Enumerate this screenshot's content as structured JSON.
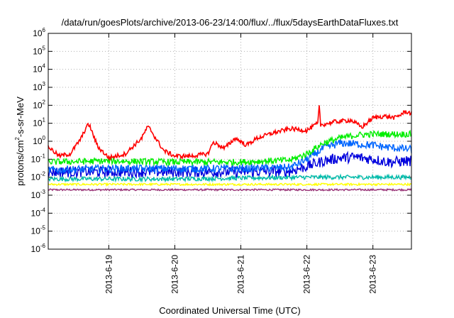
{
  "chart_data": {
    "type": "line",
    "title": "/data/run/goesPlots/archive/2013-06-23/14:00/flux/../flux/5daysEarthDataFluxes.txt",
    "xlabel": "Coordinated Universal Time (UTC)",
    "ylabel": {
      "base": "protons/cm",
      "exp": "2",
      "rest": "-s-sr-MeV"
    },
    "yscale": "log",
    "ylim": [
      1e-06,
      1000000.0
    ],
    "xlim": [
      "2013-06-18T02:00",
      "2013-06-23T14:00"
    ],
    "grid": true,
    "legend": "none",
    "x_ticks": [
      "2013-6-19",
      "2013-6-20",
      "2013-6-21",
      "2013-6-22",
      "2013-6-23"
    ],
    "y_ticks": [
      {
        "base": "10",
        "exp": "-6"
      },
      {
        "base": "10",
        "exp": "-5"
      },
      {
        "base": "10",
        "exp": "-4"
      },
      {
        "base": "10",
        "exp": "-3"
      },
      {
        "base": "10",
        "exp": "-2"
      },
      {
        "base": "10",
        "exp": "-1"
      },
      {
        "base": "10",
        "exp": "0"
      },
      {
        "base": "10",
        "exp": "1"
      },
      {
        "base": "10",
        "exp": "2"
      },
      {
        "base": "10",
        "exp": "3"
      },
      {
        "base": "10",
        "exp": "4"
      },
      {
        "base": "10",
        "exp": "5"
      },
      {
        "base": "10",
        "exp": "6"
      }
    ],
    "series": [
      {
        "color": "#ff0000",
        "x": [
          "2013-06-18T02:00",
          "2013-06-18T06:00",
          "2013-06-18T10:00",
          "2013-06-18T14:00",
          "2013-06-18T16:00",
          "2013-06-18T17:00",
          "2013-06-18T18:00",
          "2013-06-18T20:00",
          "2013-06-19T00:00",
          "2013-06-19T06:00",
          "2013-06-19T12:00",
          "2013-06-19T14:00",
          "2013-06-19T15:00",
          "2013-06-19T17:00",
          "2013-06-19T20:00",
          "2013-06-20T00:00",
          "2013-06-20T06:00",
          "2013-06-20T12:00",
          "2013-06-20T14:00",
          "2013-06-20T18:00",
          "2013-06-20T22:00",
          "2013-06-21T02:00",
          "2013-06-21T06:00",
          "2013-06-21T12:00",
          "2013-06-21T18:00",
          "2013-06-22T00:00",
          "2013-06-22T04:00",
          "2013-06-22T04:30",
          "2013-06-22T05:00",
          "2013-06-22T10:00",
          "2013-06-22T16:00",
          "2013-06-22T20:00",
          "2013-06-23T00:00",
          "2013-06-23T04:00",
          "2013-06-23T08:00",
          "2013-06-23T12:00",
          "2013-06-23T14:00"
        ],
        "y": [
          0.5,
          0.15,
          0.2,
          1.5,
          7,
          8,
          3,
          0.5,
          0.12,
          0.2,
          1.5,
          6,
          5,
          1.5,
          0.3,
          0.15,
          0.15,
          0.2,
          0.9,
          0.4,
          1.5,
          0.6,
          1.5,
          3,
          5,
          4,
          10,
          90,
          8,
          12,
          15,
          6,
          20,
          25,
          20,
          45,
          35
        ]
      },
      {
        "color": "#00ee00",
        "x": [
          "2013-06-18T02:00",
          "2013-06-19T00:00",
          "2013-06-20T00:00",
          "2013-06-21T00:00",
          "2013-06-21T18:00",
          "2013-06-22T00:00",
          "2013-06-22T06:00",
          "2013-06-22T12:00",
          "2013-06-22T18:00",
          "2013-06-23T00:00",
          "2013-06-23T06:00",
          "2013-06-23T14:00"
        ],
        "y": [
          0.07,
          0.08,
          0.07,
          0.07,
          0.09,
          0.2,
          0.8,
          1.5,
          2.2,
          2.5,
          2.5,
          2.5
        ]
      },
      {
        "color": "#0066ff",
        "x": [
          "2013-06-18T02:00",
          "2013-06-19T00:00",
          "2013-06-20T00:00",
          "2013-06-21T00:00",
          "2013-06-21T18:00",
          "2013-06-22T00:00",
          "2013-06-22T06:00",
          "2013-06-22T12:00",
          "2013-06-22T18:00",
          "2013-06-23T00:00",
          "2013-06-23T06:00",
          "2013-06-23T14:00"
        ],
        "y": [
          0.025,
          0.03,
          0.03,
          0.03,
          0.035,
          0.1,
          0.4,
          0.8,
          0.7,
          0.6,
          0.45,
          0.35
        ]
      },
      {
        "color": "#0000dd",
        "x": [
          "2013-06-18T02:00",
          "2013-06-19T00:00",
          "2013-06-20T00:00",
          "2013-06-21T00:00",
          "2013-06-21T18:00",
          "2013-06-22T00:00",
          "2013-06-22T06:00",
          "2013-06-22T12:00",
          "2013-06-22T18:00",
          "2013-06-23T00:00",
          "2013-06-23T06:00",
          "2013-06-23T14:00"
        ],
        "y": [
          0.02,
          0.02,
          0.02,
          0.02,
          0.022,
          0.04,
          0.08,
          0.12,
          0.13,
          0.1,
          0.07,
          0.08
        ]
      },
      {
        "color": "#00bbaa",
        "x": [
          "2013-06-18T02:00",
          "2013-06-20T00:00",
          "2013-06-22T00:00",
          "2013-06-23T14:00"
        ],
        "y": [
          0.008,
          0.008,
          0.01,
          0.01
        ]
      },
      {
        "color": "#ffff00",
        "x": [
          "2013-06-18T02:00",
          "2013-06-20T00:00",
          "2013-06-22T00:00",
          "2013-06-23T14:00"
        ],
        "y": [
          0.004,
          0.004,
          0.004,
          0.004
        ]
      },
      {
        "color": "#993377",
        "x": [
          "2013-06-18T02:00",
          "2013-06-20T00:00",
          "2013-06-22T00:00",
          "2013-06-23T14:00"
        ],
        "y": [
          0.002,
          0.002,
          0.002,
          0.002
        ]
      }
    ]
  }
}
